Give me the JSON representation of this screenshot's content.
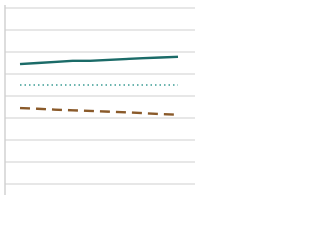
{
  "chart_data": {
    "type": "line",
    "categories": [
      null,
      null,
      null,
      null,
      null,
      null,
      null,
      null,
      null,
      null
    ],
    "series": [
      {
        "color": "#1b6b68",
        "linestyle": "solid",
        "values": [
          5.45,
          5.5,
          5.55,
          5.6,
          5.6,
          5.64,
          5.68,
          5.72,
          5.75,
          5.78
        ]
      },
      {
        "color": "#3a9b94",
        "linestyle": "dotted",
        "values": [
          4.5,
          4.5,
          4.5,
          4.5,
          4.5,
          4.5,
          4.5,
          4.5,
          4.5,
          4.5
        ]
      },
      {
        "color": "#8a5a2a",
        "linestyle": "dashed",
        "values": [
          3.45,
          3.42,
          3.38,
          3.35,
          3.32,
          3.29,
          3.26,
          3.22,
          3.18,
          3.15
        ]
      }
    ],
    "ylim": [
      0,
      8
    ],
    "yticks": [
      0,
      1,
      2,
      3,
      4,
      5,
      6,
      7,
      8
    ],
    "grid": true
  }
}
